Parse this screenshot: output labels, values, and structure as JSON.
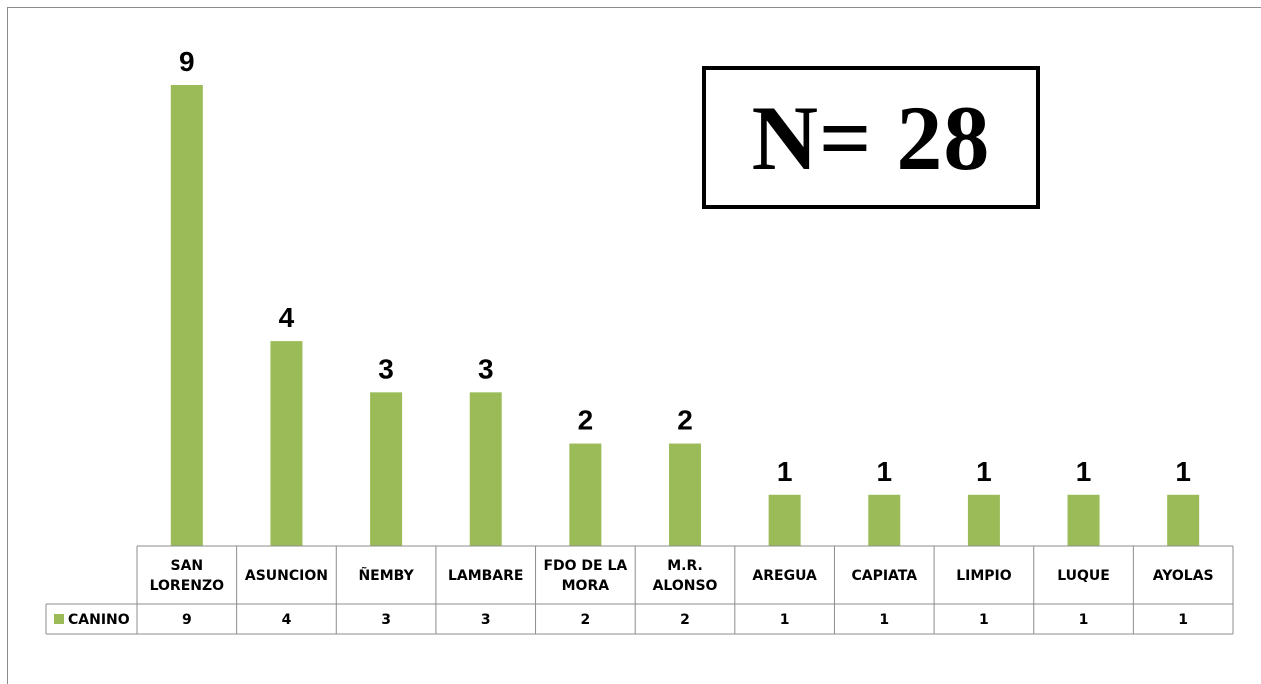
{
  "annotation": {
    "text": "N= 28"
  },
  "colors": {
    "bar": "#9bbb59",
    "grid": "#8c8c8c",
    "text": "#000000"
  },
  "chart_data": {
    "type": "bar",
    "title": "",
    "xlabel": "",
    "ylabel": "",
    "categories": [
      [
        "SAN",
        "LORENZO"
      ],
      [
        "ASUNCION"
      ],
      [
        "ÑEMBY"
      ],
      [
        "LAMBARE"
      ],
      [
        "FDO DE LA",
        "MORA"
      ],
      [
        "M.R.",
        "ALONSO"
      ],
      [
        "AREGUA"
      ],
      [
        "CAPIATA"
      ],
      [
        "LIMPIO"
      ],
      [
        "LUQUE"
      ],
      [
        "AYOLAS"
      ]
    ],
    "series": [
      {
        "name": "CANINO",
        "values": [
          9,
          4,
          3,
          3,
          2,
          2,
          1,
          1,
          1,
          1,
          1
        ]
      }
    ],
    "ylim": [
      0,
      9
    ],
    "grid": false,
    "legend": "data-table",
    "data_table": true
  }
}
